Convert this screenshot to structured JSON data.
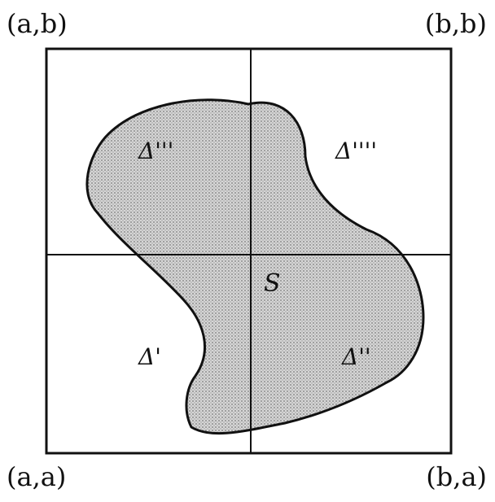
{
  "corners": {
    "top_left": "(a,b)",
    "top_right": "(b,b)",
    "bottom_left": "(a,a)",
    "bottom_right": "(b,a)"
  },
  "regions": {
    "upper_left": "Δ'''",
    "upper_right": "Δ''''",
    "lower_left": "Δ'",
    "lower_right": "Δ''"
  },
  "set": {
    "label": "S"
  },
  "colors": {
    "line": "#111111",
    "shade": "#bdbdbd",
    "background": "#ffffff"
  }
}
